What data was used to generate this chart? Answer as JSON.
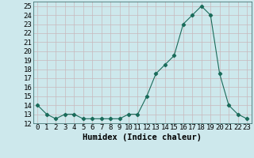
{
  "x": [
    0,
    1,
    2,
    3,
    4,
    5,
    6,
    7,
    8,
    9,
    10,
    11,
    12,
    13,
    14,
    15,
    16,
    17,
    18,
    19,
    20,
    21,
    22,
    23
  ],
  "y": [
    14,
    13,
    12.5,
    13,
    13,
    12.5,
    12.5,
    12.5,
    12.5,
    12.5,
    13,
    13,
    15,
    17.5,
    18.5,
    19.5,
    23,
    24,
    25,
    24,
    17.5,
    14,
    13,
    12.5
  ],
  "line_color": "#1a6b5a",
  "marker_color": "#1a6b5a",
  "bg_color": "#cde8ec",
  "grid_color": "#b8d4d8",
  "xlabel": "Humidex (Indice chaleur)",
  "xlim": [
    -0.5,
    23.5
  ],
  "ylim": [
    12,
    25.5
  ],
  "yticks": [
    12,
    13,
    14,
    15,
    16,
    17,
    18,
    19,
    20,
    21,
    22,
    23,
    24,
    25
  ],
  "xtick_labels": [
    "0",
    "1",
    "2",
    "3",
    "4",
    "5",
    "6",
    "7",
    "8",
    "9",
    "10",
    "11",
    "12",
    "13",
    "14",
    "15",
    "16",
    "17",
    "18",
    "19",
    "20",
    "21",
    "22",
    "23"
  ],
  "tick_fontsize": 6.5,
  "xlabel_fontsize": 7.5
}
